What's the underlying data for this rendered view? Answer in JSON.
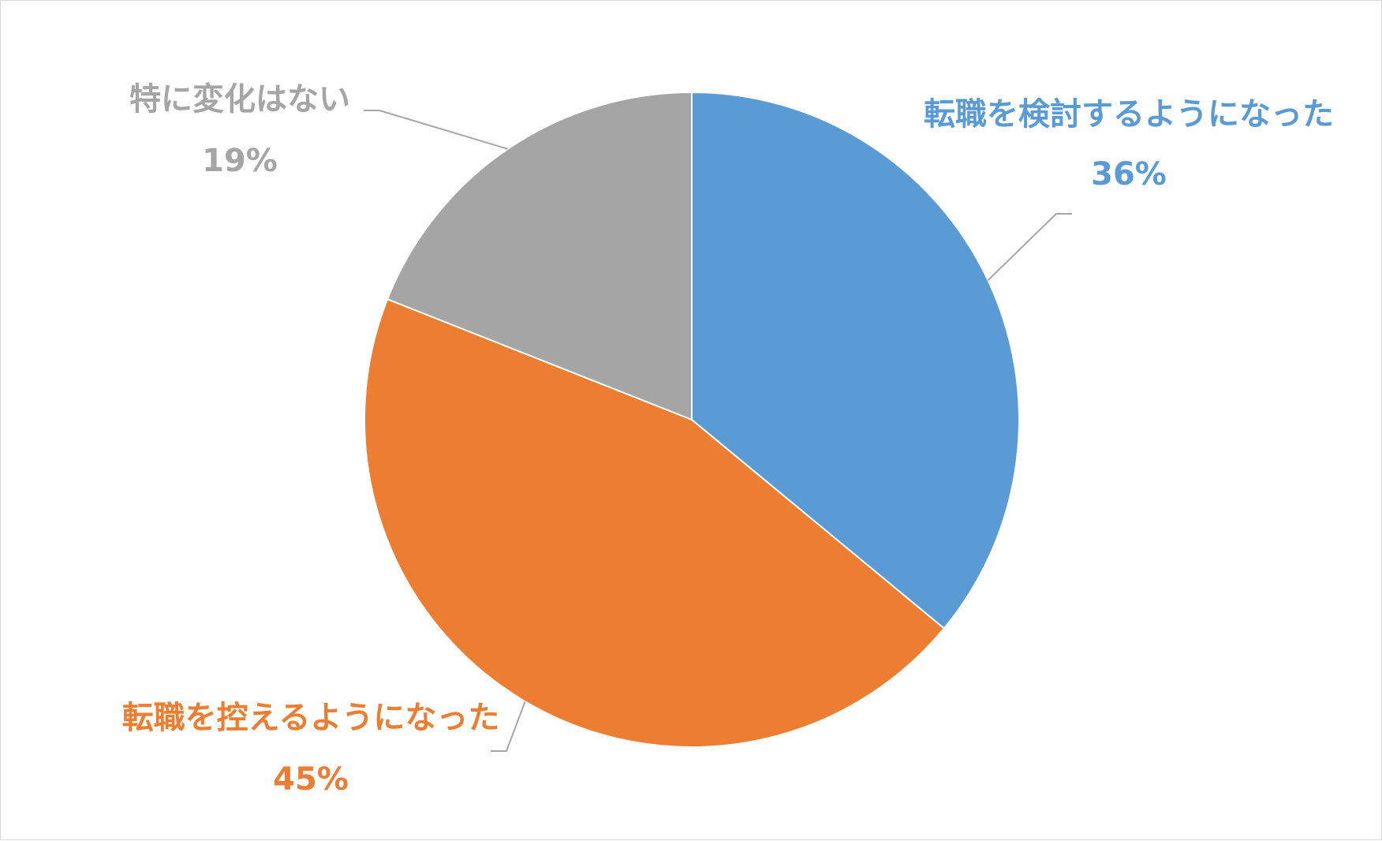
{
  "chart_data": {
    "type": "pie",
    "categories": [
      "転職を検討するようになった",
      "転職を控えるようになった",
      "特に変化はない"
    ],
    "values": [
      36,
      45,
      19
    ],
    "value_labels": [
      "36%",
      "45%",
      "19%"
    ],
    "colors": [
      "#5b9bd5",
      "#ed7d31",
      "#a5a5a5"
    ],
    "start_angle_deg": 0,
    "direction": "clockwise",
    "legend": "none",
    "data_labels": "outside with leader lines"
  }
}
